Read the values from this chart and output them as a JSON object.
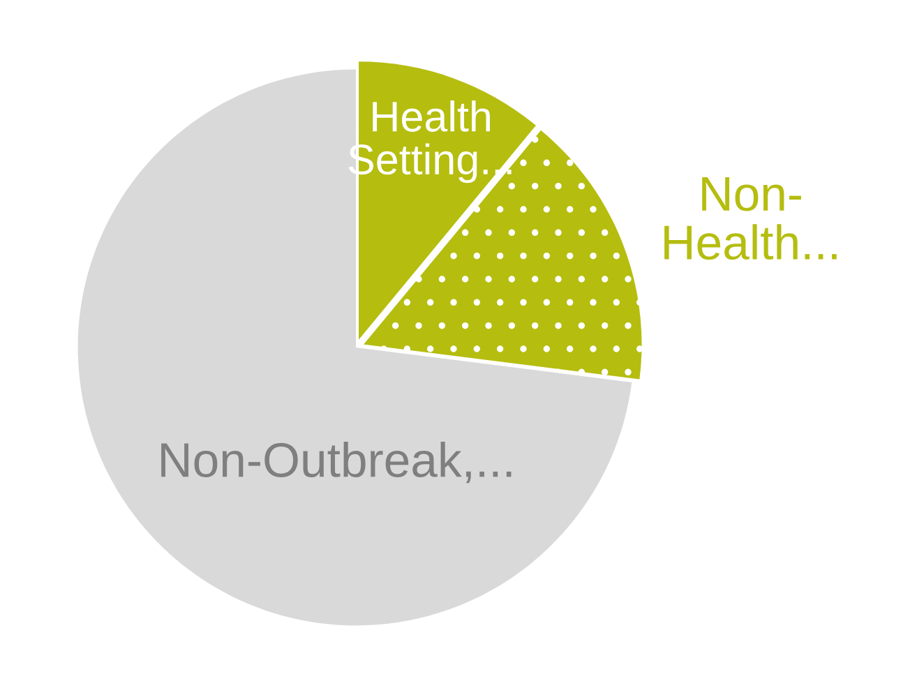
{
  "chart_data": {
    "type": "pie",
    "categories": [
      "Health Setting...",
      "Non-Health...",
      "Non-Outbreak,..."
    ],
    "values": [
      11,
      16,
      73
    ],
    "colors": [
      "#b5bd0f",
      "#b5bd0f",
      "#d9d9d9"
    ],
    "legend": false
  }
}
